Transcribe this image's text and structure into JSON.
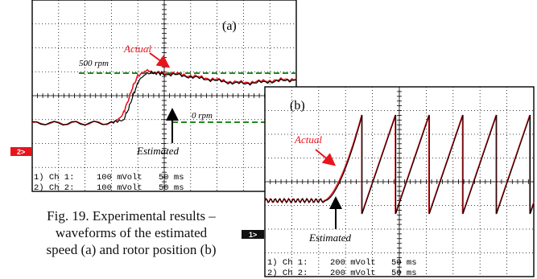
{
  "figure": {
    "caption": [
      "Fig. 19. Experimental results –",
      "waveforms of the estimated",
      "speed (a) and rotor position (b)"
    ]
  },
  "colors": {
    "actual": "#e8141c",
    "estimated": "#000000",
    "reference": "#1f8a1f",
    "grid": "#000000"
  },
  "chart_data": [
    {
      "type": "line",
      "panel_label": "(a)",
      "x_divisions": 10,
      "y_divisions": 8,
      "reference_lines": [
        {
          "label": "500 rpm",
          "color": "#1f8a1f",
          "style": "dashed"
        },
        {
          "label": "0 rpm",
          "color": "#1f8a1f",
          "style": "dashed"
        }
      ],
      "annotations": [
        "Actual",
        "Estimated"
      ],
      "channel_marker": "2>",
      "channels": [
        {
          "label": "1) Ch 1:",
          "value": "100 mVolt",
          "time": "50 ms"
        },
        {
          "label": "2) Ch 2:",
          "value": "100 mVolt",
          "time": "50 ms"
        }
      ],
      "series": [
        {
          "name": "Actual",
          "color": "#e8141c",
          "x": [
            0,
            2,
            4,
            6,
            6.8,
            7.2,
            7.6,
            8,
            8.6,
            9.4,
            10,
            11,
            12,
            13,
            14,
            15,
            16,
            17,
            18,
            19,
            20
          ],
          "y": [
            -0.05,
            -0.05,
            -0.05,
            -0.03,
            0.3,
            1.0,
            1.8,
            2.4,
            2.65,
            2.6,
            2.55,
            2.5,
            2.4,
            2.3,
            2.2,
            2.1,
            2.05,
            2.1,
            2.15,
            2.2,
            2.25
          ]
        },
        {
          "name": "Estimated",
          "color": "#000000",
          "x": [
            0,
            2,
            4,
            6,
            6.9,
            7.3,
            7.7,
            8.1,
            8.7,
            9.4,
            10,
            11,
            12,
            13,
            14,
            15,
            16,
            17,
            18,
            19,
            20
          ],
          "y": [
            -0.05,
            -0.05,
            -0.05,
            -0.03,
            0.1,
            0.7,
            1.5,
            2.2,
            2.55,
            2.55,
            2.5,
            2.45,
            2.35,
            2.25,
            2.15,
            2.05,
            2.0,
            2.05,
            2.1,
            2.15,
            2.2
          ]
        }
      ]
    },
    {
      "type": "line",
      "panel_label": "(b)",
      "x_divisions": 10,
      "y_divisions": 8,
      "annotations": [
        "Actual",
        "Estimated"
      ],
      "channel_marker": "1>",
      "channels": [
        {
          "label": "1) Ch 1:",
          "value": "200 mVolt",
          "time": "50 ms"
        },
        {
          "label": "2) Ch 2:",
          "value": "200 mVolt",
          "time": "50 ms"
        }
      ],
      "ramp": {
        "start_x": 2.2,
        "first_reset_x": 3.6,
        "period": 1.25,
        "low": -0.6,
        "high": 3.5,
        "end_x": 10
      }
    }
  ]
}
